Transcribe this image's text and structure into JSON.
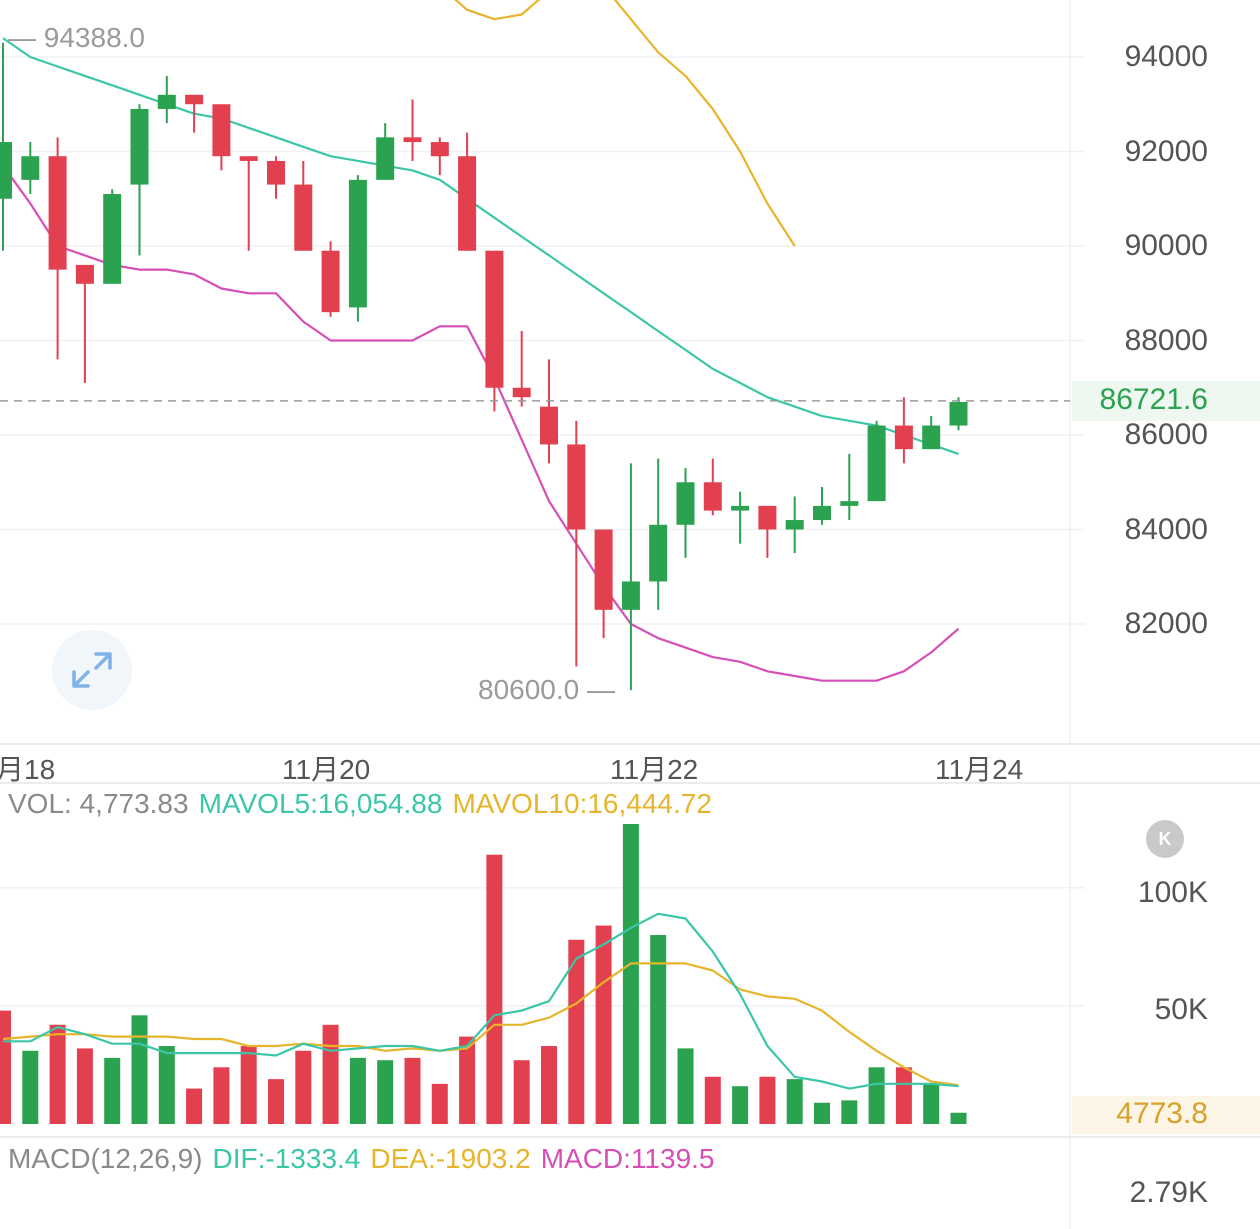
{
  "chart_data": [
    {
      "type": "candlestick",
      "y_ticks": [
        "94000",
        "92000",
        "90000",
        "88000",
        "86000",
        "84000",
        "82000"
      ],
      "ylim": [
        80000,
        95000
      ],
      "x_ticks": [
        "月18",
        "11月20",
        "11月22",
        "11月24"
      ],
      "last_price": "86721.6",
      "annotations": {
        "high": "94388.0",
        "low": "80600.0"
      },
      "grid": true,
      "colors": {
        "up": "#2aa24f",
        "down": "#e2404f",
        "ma_teal": "#3cc6a8",
        "ma_pink": "#d54fb7",
        "ma_orange": "#e7b52c",
        "last_price_line": "#9a9a9a"
      },
      "candles": [
        {
          "o": 91000,
          "h": 94300,
          "c": 92200,
          "l": 89900
        },
        {
          "o": 91400,
          "h": 92200,
          "c": 91900,
          "l": 91100
        },
        {
          "o": 91900,
          "h": 92300,
          "c": 89500,
          "l": 87600
        },
        {
          "o": 89600,
          "h": 89600,
          "c": 89200,
          "l": 87100
        },
        {
          "o": 89200,
          "h": 91200,
          "c": 91100,
          "l": 89200
        },
        {
          "o": 91300,
          "h": 93000,
          "c": 92900,
          "l": 89800
        },
        {
          "o": 92900,
          "h": 93600,
          "c": 93200,
          "l": 92600
        },
        {
          "o": 93200,
          "h": 93200,
          "c": 93000,
          "l": 92400
        },
        {
          "o": 93000,
          "h": 93000,
          "c": 91900,
          "l": 91600
        },
        {
          "o": 91900,
          "h": 91900,
          "c": 91800,
          "l": 89900
        },
        {
          "o": 91800,
          "h": 91900,
          "c": 91300,
          "l": 91000
        },
        {
          "o": 91300,
          "h": 91800,
          "c": 89900,
          "l": 89900
        },
        {
          "o": 89900,
          "h": 90100,
          "c": 88600,
          "l": 88500
        },
        {
          "o": 88700,
          "h": 91500,
          "c": 91400,
          "l": 88400
        },
        {
          "o": 91400,
          "h": 92600,
          "c": 92300,
          "l": 91400
        },
        {
          "o": 92300,
          "h": 93100,
          "c": 92200,
          "l": 91800
        },
        {
          "o": 92200,
          "h": 92300,
          "c": 91900,
          "l": 91500
        },
        {
          "o": 91900,
          "h": 92400,
          "c": 89900,
          "l": 89900
        },
        {
          "o": 89900,
          "h": 89900,
          "c": 87000,
          "l": 86500
        },
        {
          "o": 87000,
          "h": 88200,
          "c": 86800,
          "l": 86600
        },
        {
          "o": 86600,
          "h": 87600,
          "c": 85800,
          "l": 85400
        },
        {
          "o": 85800,
          "h": 86300,
          "c": 84000,
          "l": 81100
        },
        {
          "o": 84000,
          "h": 84000,
          "c": 82300,
          "l": 81700
        },
        {
          "o": 82300,
          "h": 85400,
          "c": 82900,
          "l": 80600
        },
        {
          "o": 82900,
          "h": 85500,
          "c": 84100,
          "l": 82300
        },
        {
          "o": 84100,
          "h": 85300,
          "c": 85000,
          "l": 83400
        },
        {
          "o": 85000,
          "h": 85500,
          "c": 84400,
          "l": 84300
        },
        {
          "o": 84400,
          "h": 84800,
          "c": 84500,
          "l": 83700
        },
        {
          "o": 84500,
          "h": 84500,
          "c": 84000,
          "l": 83400
        },
        {
          "o": 84000,
          "h": 84700,
          "c": 84200,
          "l": 83500
        },
        {
          "o": 84200,
          "h": 84900,
          "c": 84500,
          "l": 84100
        },
        {
          "o": 84500,
          "h": 85600,
          "c": 84600,
          "l": 84200
        },
        {
          "o": 84600,
          "h": 86300,
          "c": 86200,
          "l": 84600
        },
        {
          "o": 86200,
          "h": 86800,
          "c": 85700,
          "l": 85400
        },
        {
          "o": 85700,
          "h": 86400,
          "c": 86200,
          "l": 85700
        },
        {
          "o": 86200,
          "h": 86800,
          "c": 86700,
          "l": 86100
        }
      ],
      "ma_teal": [
        94400,
        94000,
        93800,
        93600,
        93400,
        93200,
        93000,
        92800,
        92700,
        92500,
        92300,
        92100,
        91900,
        91800,
        91700,
        91600,
        91400,
        91000,
        90600,
        90200,
        89800,
        89400,
        89000,
        88600,
        88200,
        87800,
        87400,
        87100,
        86800,
        86600,
        86400,
        86300,
        86200,
        86000,
        85800,
        85600
      ],
      "ma_pink": [
        91700,
        90900,
        90000,
        89800,
        89600,
        89500,
        89500,
        89400,
        89100,
        89000,
        89000,
        88400,
        88000,
        88000,
        88000,
        88000,
        88300,
        88300,
        87200,
        85900,
        84600,
        83700,
        82800,
        82000,
        81700,
        81500,
        81300,
        81200,
        81000,
        80900,
        80800,
        80800,
        80800,
        81000,
        81400,
        81900
      ],
      "ma_orange_visible": [
        95500,
        95000,
        94800,
        94900,
        95400,
        95700,
        95500,
        94800,
        94100,
        93600,
        92900,
        92000,
        90900,
        90000
      ]
    },
    {
      "type": "bar",
      "label": "VOL",
      "y_ticks": [
        "100K",
        "50K"
      ],
      "ylim": [
        0,
        127000
      ],
      "last_value": "4773.8",
      "colors": {
        "up": "#2aa24f",
        "down": "#e2404f",
        "mavol5": "#3cc6a8",
        "mavol10": "#e7b52c"
      },
      "directions": [
        "down",
        "up",
        "down",
        "down",
        "up",
        "up",
        "up",
        "down",
        "down",
        "down",
        "down",
        "down",
        "down",
        "up",
        "up",
        "down",
        "down",
        "down",
        "down",
        "down",
        "down",
        "down",
        "down",
        "up",
        "up",
        "up",
        "down",
        "up",
        "down",
        "up",
        "up",
        "up",
        "up",
        "down",
        "up",
        "up"
      ],
      "values": [
        48000,
        31000,
        42000,
        32000,
        28000,
        46000,
        33000,
        15000,
        24000,
        33000,
        19000,
        31000,
        42000,
        28000,
        27000,
        28000,
        17000,
        37000,
        114000,
        27000,
        33000,
        78000,
        84000,
        127000,
        80000,
        32000,
        20000,
        16000,
        20000,
        19000,
        9000,
        10000,
        24000,
        24000,
        17000,
        4773.83
      ],
      "mavol5": [
        35000,
        35000,
        41000,
        38000,
        34000,
        34000,
        30000,
        30000,
        30000,
        30000,
        29000,
        34000,
        31000,
        32000,
        33000,
        33000,
        31000,
        33000,
        46000,
        48000,
        52000,
        70000,
        76000,
        83000,
        89000,
        87000,
        73000,
        55000,
        33000,
        20000,
        18000,
        15000,
        17000,
        17000,
        17000,
        16054.88
      ],
      "mavol10": [
        36000,
        37000,
        38000,
        38000,
        37000,
        37000,
        37000,
        36000,
        36000,
        33000,
        33000,
        34000,
        33000,
        33000,
        31000,
        32000,
        31000,
        32000,
        42000,
        42000,
        45000,
        51000,
        60000,
        68000,
        68000,
        68000,
        65000,
        57000,
        54000,
        53000,
        48000,
        39000,
        31000,
        24000,
        18000,
        16444.72
      ]
    }
  ],
  "vol_legend": {
    "vol": "VOL: 4,773.83",
    "mavol5": "MAVOL5:16,054.88",
    "mavol10": "MAVOL10:16,444.72"
  },
  "macd_legend": {
    "params": "MACD(12,26,9)",
    "dif": "DIF:-1333.4",
    "dea": "DEA:-1903.2",
    "macd": "MACD:1139.5"
  },
  "macd_axis_label": "2.79K",
  "badge_letter": "K",
  "icons": {
    "expand": "expand-arrows-icon",
    "badge": "k-badge-icon"
  }
}
